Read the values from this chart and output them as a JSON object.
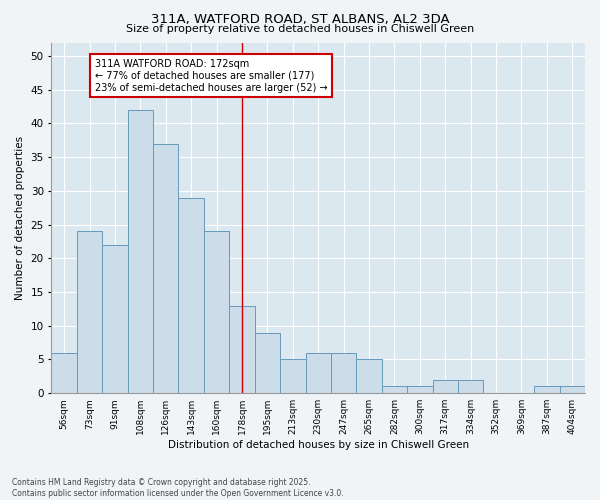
{
  "title_line1": "311A, WATFORD ROAD, ST ALBANS, AL2 3DA",
  "title_line2": "Size of property relative to detached houses in Chiswell Green",
  "xlabel": "Distribution of detached houses by size in Chiswell Green",
  "ylabel": "Number of detached properties",
  "bar_color": "#ccdce8",
  "bar_edge_color": "#6699bb",
  "bin_labels": [
    "56sqm",
    "73sqm",
    "91sqm",
    "108sqm",
    "126sqm",
    "143sqm",
    "160sqm",
    "178sqm",
    "195sqm",
    "213sqm",
    "230sqm",
    "247sqm",
    "265sqm",
    "282sqm",
    "300sqm",
    "317sqm",
    "334sqm",
    "352sqm",
    "369sqm",
    "387sqm",
    "404sqm"
  ],
  "bar_values": [
    6,
    24,
    22,
    42,
    37,
    29,
    24,
    13,
    9,
    5,
    6,
    6,
    5,
    1,
    1,
    2,
    2,
    0,
    0,
    1,
    1
  ],
  "vline_x": 7,
  "vline_color": "#cc0000",
  "ylim": [
    0,
    52
  ],
  "yticks": [
    0,
    5,
    10,
    15,
    20,
    25,
    30,
    35,
    40,
    45,
    50
  ],
  "annotation_title": "311A WATFORD ROAD: 172sqm",
  "annotation_line2": "← 77% of detached houses are smaller (177)",
  "annotation_line3": "23% of semi-detached houses are larger (52) →",
  "annotation_box_color": "#ffffff",
  "annotation_box_edge": "#cc0000",
  "bg_color": "#dce8f0",
  "fig_bg_color": "#f0f4f7",
  "footer_line1": "Contains HM Land Registry data © Crown copyright and database right 2025.",
  "footer_line2": "Contains public sector information licensed under the Open Government Licence v3.0."
}
